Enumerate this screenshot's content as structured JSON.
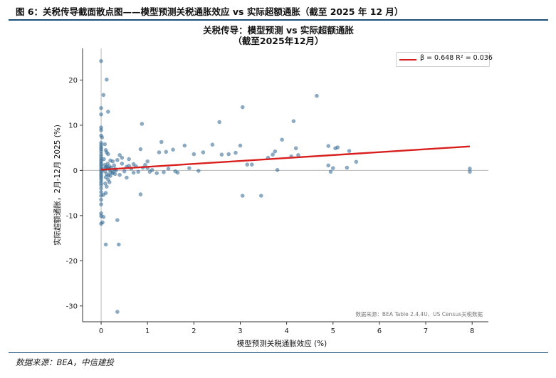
{
  "figure": {
    "caption": "图 6：关税传导截面散点图——模型预测关税通胀效应 vs 实际超额通胀（截至 2025 年 12 月）",
    "source": "数据来源：BEA，中信建投"
  },
  "colors": {
    "accent": "#1a4f7a",
    "points": "#2f6690",
    "fit_line": "#d91e1e"
  },
  "chart_data": {
    "type": "scatter",
    "title": "关税传导：模型预测 vs 实际超额通胀",
    "subtitle": "（截至2025年12月）",
    "xlabel": "模型预测关税通胀效应 (%)",
    "ylabel": "实际超额通胀，2月-12月 2025 (%)",
    "xlim": [
      -0.4,
      8.35
    ],
    "ylim": [
      -33.5,
      27
    ],
    "xticks": [
      0,
      1,
      2,
      3,
      4,
      5,
      6,
      7,
      8
    ],
    "yticks": [
      -30,
      -20,
      -10,
      0,
      10,
      20
    ],
    "grid": false,
    "legend_position": "top-right",
    "annotation": "数据来源：BEA Table 2.4.4U、US Census关税数据",
    "fit": {
      "label": "β = 0.648  R² = 0.036",
      "slope": 0.648,
      "intercept": 0.15,
      "x_range": [
        0,
        7.95
      ]
    },
    "points": [
      [
        0.0,
        24.2
      ],
      [
        0.12,
        20.1
      ],
      [
        0.05,
        16.7
      ],
      [
        0.15,
        13.0
      ],
      [
        0.0,
        13.8
      ],
      [
        0.0,
        12.4
      ],
      [
        0.0,
        9.5
      ],
      [
        0.0,
        8.9
      ],
      [
        0.02,
        7.3
      ],
      [
        0.0,
        7.7
      ],
      [
        0.0,
        6.1
      ],
      [
        0.0,
        5.6
      ],
      [
        0.0,
        5.1
      ],
      [
        0.0,
        4.7
      ],
      [
        0.0,
        4.2
      ],
      [
        0.0,
        3.6
      ],
      [
        0.0,
        3.1
      ],
      [
        0.0,
        2.6
      ],
      [
        0.0,
        2.2
      ],
      [
        0.0,
        1.8
      ],
      [
        0.0,
        1.4
      ],
      [
        0.0,
        1.0
      ],
      [
        0.0,
        0.6
      ],
      [
        0.0,
        0.2
      ],
      [
        0.0,
        -0.2
      ],
      [
        0.0,
        -0.6
      ],
      [
        0.0,
        -1.0
      ],
      [
        0.0,
        -1.4
      ],
      [
        0.0,
        -1.8
      ],
      [
        0.0,
        -2.3
      ],
      [
        0.0,
        -2.8
      ],
      [
        0.0,
        -3.3
      ],
      [
        0.0,
        -4.0
      ],
      [
        0.0,
        -4.8
      ],
      [
        0.0,
        -5.6
      ],
      [
        0.0,
        -6.5
      ],
      [
        0.0,
        -7.5
      ],
      [
        0.0,
        -9.5
      ],
      [
        0.0,
        -10.1
      ],
      [
        0.05,
        -10.3
      ],
      [
        0.03,
        -11.5
      ],
      [
        0.0,
        -11.8
      ],
      [
        0.1,
        -16.4
      ],
      [
        0.38,
        -16.4
      ],
      [
        0.35,
        -31.3
      ],
      [
        0.35,
        -11.0
      ],
      [
        0.08,
        5.8
      ],
      [
        0.1,
        4.5
      ],
      [
        0.12,
        4.0
      ],
      [
        0.15,
        3.6
      ],
      [
        0.2,
        2.2
      ],
      [
        0.25,
        2.0
      ],
      [
        0.08,
        1.2
      ],
      [
        0.12,
        0.8
      ],
      [
        0.15,
        0.5
      ],
      [
        0.18,
        0.2
      ],
      [
        0.22,
        0.6
      ],
      [
        0.25,
        -0.3
      ],
      [
        0.3,
        -0.8
      ],
      [
        0.1,
        -1.5
      ],
      [
        0.15,
        -2.0
      ],
      [
        0.18,
        -2.6
      ],
      [
        0.12,
        -3.6
      ],
      [
        0.1,
        -5.0
      ],
      [
        0.05,
        -5.4
      ],
      [
        0.2,
        -1.2
      ],
      [
        0.25,
        -0.6
      ],
      [
        0.3,
        0.3
      ],
      [
        0.35,
        2.3
      ],
      [
        0.4,
        3.4
      ],
      [
        0.45,
        2.8
      ],
      [
        0.5,
        -0.2
      ],
      [
        0.55,
        0.8
      ],
      [
        0.6,
        2.5
      ],
      [
        0.65,
        0.4
      ],
      [
        0.7,
        -0.5
      ],
      [
        0.75,
        0.9
      ],
      [
        0.8,
        -0.3
      ],
      [
        0.85,
        4.7
      ],
      [
        0.88,
        10.3
      ],
      [
        0.85,
        -5.3
      ],
      [
        0.9,
        0.6
      ],
      [
        1.0,
        2.0
      ],
      [
        1.0,
        0.5
      ],
      [
        1.05,
        -0.3
      ],
      [
        1.1,
        0.1
      ],
      [
        1.25,
        4.0
      ],
      [
        1.3,
        6.3
      ],
      [
        1.35,
        -0.4
      ],
      [
        1.4,
        4.1
      ],
      [
        1.45,
        0.4
      ],
      [
        1.55,
        4.6
      ],
      [
        1.65,
        -0.5
      ],
      [
        1.8,
        5.5
      ],
      [
        1.9,
        0.5
      ],
      [
        2.0,
        3.6
      ],
      [
        2.1,
        -0.1
      ],
      [
        2.2,
        4.0
      ],
      [
        2.4,
        5.7
      ],
      [
        2.55,
        10.7
      ],
      [
        2.6,
        3.5
      ],
      [
        2.75,
        3.6
      ],
      [
        2.9,
        3.9
      ],
      [
        3.0,
        5.5
      ],
      [
        3.05,
        14.0
      ],
      [
        3.05,
        -5.6
      ],
      [
        3.15,
        1.3
      ],
      [
        3.25,
        1.3
      ],
      [
        3.45,
        -5.6
      ],
      [
        3.6,
        2.8
      ],
      [
        3.7,
        3.5
      ],
      [
        3.75,
        4.2
      ],
      [
        3.8,
        0.1
      ],
      [
        3.9,
        6.8
      ],
      [
        4.1,
        3.1
      ],
      [
        4.15,
        10.9
      ],
      [
        4.2,
        4.9
      ],
      [
        4.25,
        3.4
      ],
      [
        4.65,
        16.5
      ],
      [
        4.9,
        5.4
      ],
      [
        4.9,
        1.1
      ],
      [
        4.95,
        -0.3
      ],
      [
        5.0,
        0.5
      ],
      [
        5.05,
        4.9
      ],
      [
        5.1,
        5.1
      ],
      [
        5.3,
        0.6
      ],
      [
        5.35,
        4.3
      ],
      [
        5.5,
        1.9
      ],
      [
        7.95,
        0.4
      ],
      [
        7.95,
        -0.3
      ],
      [
        0.05,
        0.3
      ],
      [
        0.08,
        -0.2
      ],
      [
        0.1,
        0.7
      ],
      [
        0.12,
        -0.8
      ],
      [
        0.14,
        1.5
      ],
      [
        0.16,
        -1.1
      ],
      [
        0.18,
        0.9
      ],
      [
        0.2,
        -0.4
      ],
      [
        0.06,
        2.5
      ],
      [
        0.09,
        -2.9
      ],
      [
        0.28,
        1.1
      ],
      [
        0.32,
        0.0
      ],
      [
        0.4,
        -1.0
      ],
      [
        0.45,
        1.5
      ],
      [
        0.55,
        -1.6
      ],
      [
        0.6,
        1.0
      ],
      [
        0.7,
        1.4
      ],
      [
        0.95,
        1.2
      ],
      [
        1.2,
        -0.6
      ],
      [
        1.6,
        -0.2
      ]
    ]
  }
}
